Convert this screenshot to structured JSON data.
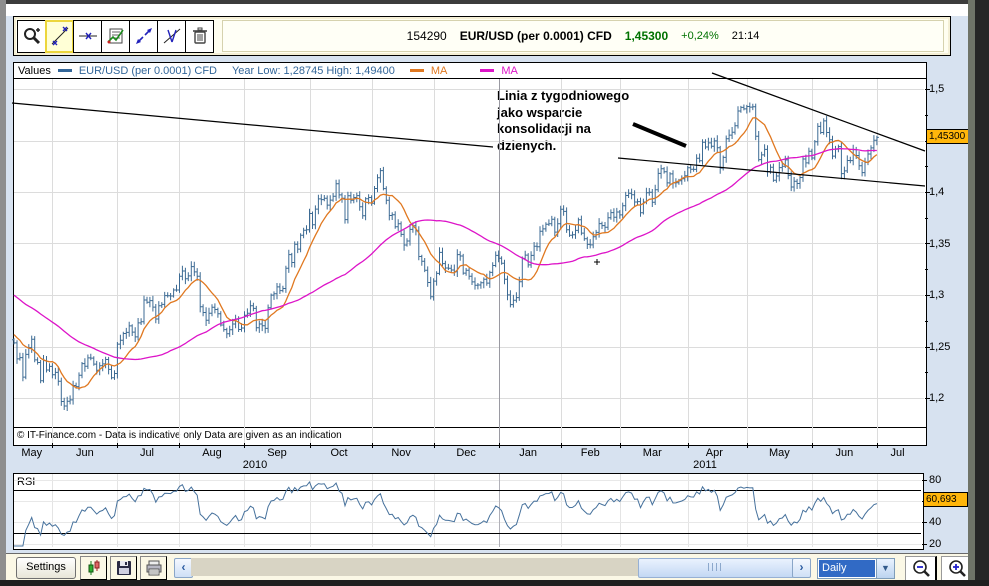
{
  "toolbar": {
    "icons": [
      {
        "name": "zoom-tool-icon"
      },
      {
        "name": "trendline-tool-icon",
        "selected": true
      },
      {
        "name": "horizontal-line-tool-icon"
      },
      {
        "name": "indicator-list-tool-icon"
      },
      {
        "name": "extend-line-tool-icon"
      },
      {
        "name": "delete-line-tool-icon"
      },
      {
        "name": "trash-tool-icon"
      }
    ],
    "quote": {
      "id": "154290",
      "symbol": "EUR/USD (per 0.0001) CFD",
      "price": "1,45300",
      "change": "+0,24%",
      "time": "21:14"
    }
  },
  "legend": {
    "values_label": "Values",
    "symbol": "EUR/USD (per 0.0001) CFD",
    "range": "Year Low: 1,28745 High: 1,49400",
    "ma1_label": "MA",
    "ma2_label": "MA"
  },
  "annotation": {
    "text": "Linia z tygodniowego\njako wsparcie\nkonsolidacji na\ndzienych."
  },
  "copyright": "© IT-Finance.com -  Data is indicative only Data are given as an indication",
  "bottom": {
    "settings_label": "Settings",
    "interval_value": "Daily",
    "scroll_left": "‹",
    "scroll_right": "›",
    "combo_arrow": "▼"
  },
  "colors": {
    "candle": "#3d6b94",
    "ma_fast": "#e07820",
    "ma_slow": "#dd14c8",
    "marker_bg": "#ffb60b",
    "up_green": "#007200",
    "legend_blue": "#336699",
    "rsi_line": "#46719c"
  },
  "chart_data": {
    "type": "candlestick",
    "symbol": "EUR/USD (per 0.0001) CFD",
    "interval": "Daily",
    "x_start_label": "May 2010",
    "x_end_label": "Jul 2011",
    "ylim": [
      1.17,
      1.52
    ],
    "grid": true,
    "price_axis_labels": [
      {
        "text": "1,5",
        "value": 1.5
      },
      {
        "text": "1,4",
        "value": 1.4
      },
      {
        "text": "1,35",
        "value": 1.35
      },
      {
        "text": "1,3",
        "value": 1.3
      },
      {
        "text": "1,25",
        "value": 1.25
      },
      {
        "text": "1,2",
        "value": 1.2
      }
    ],
    "minor_tick_values": [
      1.475,
      1.45,
      1.425,
      1.375,
      1.325,
      1.275,
      1.225
    ],
    "last_price_marker": {
      "text": "1,45300",
      "value": 1.453
    },
    "month_labels": [
      {
        "label": "May",
        "i": 6
      },
      {
        "label": "Jun",
        "i": 24
      },
      {
        "label": "Jul",
        "i": 45
      },
      {
        "label": "Aug",
        "i": 67
      },
      {
        "label": "Sep",
        "i": 89
      },
      {
        "label": "Oct",
        "i": 110
      },
      {
        "label": "Nov",
        "i": 131
      },
      {
        "label": "Dec",
        "i": 153
      },
      {
        "label": "Jan",
        "i": 174
      },
      {
        "label": "Feb",
        "i": 195
      },
      {
        "label": "Mar",
        "i": 216
      },
      {
        "label": "Apr",
        "i": 237
      },
      {
        "label": "May",
        "i": 259
      },
      {
        "label": "Jun",
        "i": 281
      },
      {
        "label": "Jul",
        "i": 299
      }
    ],
    "month_start_indices": [
      13,
      35,
      56,
      78,
      100,
      121,
      142,
      164,
      185,
      205,
      228,
      248,
      270,
      292
    ],
    "year_separator_index": 164,
    "year_labels": [
      {
        "label": "2010",
        "x": 255
      },
      {
        "label": "2011",
        "x": 705
      }
    ],
    "ma_periods": {
      "fast": 10,
      "slow": 50
    },
    "closes": [
      1.2535,
      1.238,
      1.2392,
      1.2203,
      1.2423,
      1.2489,
      1.257,
      1.237,
      1.2345,
      1.2168,
      1.2363,
      1.2272,
      1.2307,
      1.2225,
      1.2249,
      1.2163,
      1.1966,
      1.1922,
      1.1969,
      1.1982,
      1.2121,
      1.2111,
      1.2221,
      1.2334,
      1.2308,
      1.2389,
      1.2387,
      1.2329,
      1.2269,
      1.2313,
      1.2331,
      1.2374,
      1.2278,
      1.2196,
      1.2238,
      1.2523,
      1.256,
      1.2626,
      1.2637,
      1.27,
      1.264,
      1.2593,
      1.2729,
      1.274,
      1.2951,
      1.293,
      1.2946,
      1.2883,
      1.2767,
      1.2895,
      1.2909,
      1.2994,
      1.2993,
      1.299,
      1.3049,
      1.3049,
      1.3182,
      1.3233,
      1.3158,
      1.3185,
      1.3276,
      1.3224,
      1.3183,
      1.2885,
      1.283,
      1.2754,
      1.2822,
      1.2881,
      1.2859,
      1.2817,
      1.2709,
      1.2664,
      1.2624,
      1.2662,
      1.2718,
      1.2764,
      1.2665,
      1.268,
      1.2803,
      1.2822,
      1.2895,
      1.287,
      1.2683,
      1.2718,
      1.2702,
      1.2676,
      1.2876,
      1.2999,
      1.3012,
      1.3079,
      1.3043,
      1.3063,
      1.3259,
      1.3392,
      1.3316,
      1.3493,
      1.3446,
      1.3581,
      1.3629,
      1.3634,
      1.3791,
      1.3683,
      1.3834,
      1.3933,
      1.3926,
      1.3939,
      1.3873,
      1.3921,
      1.3959,
      1.408,
      1.3972,
      1.394,
      1.3732,
      1.3964,
      1.392,
      1.3947,
      1.3965,
      1.3857,
      1.3769,
      1.3934,
      1.3947,
      1.3891,
      1.4034,
      1.4139,
      1.4208,
      1.4033,
      1.392,
      1.3772,
      1.3779,
      1.3663,
      1.3691,
      1.3588,
      1.3485,
      1.3524,
      1.3637,
      1.3672,
      1.3622,
      1.3374,
      1.3327,
      1.3241,
      1.3121,
      1.2983,
      1.3135,
      1.321,
      1.3414,
      1.3305,
      1.3262,
      1.3259,
      1.3243,
      1.3225,
      1.3392,
      1.3379,
      1.3213,
      1.324,
      1.3183,
      1.3127,
      1.3095,
      1.3097,
      1.3118,
      1.3152,
      1.3116,
      1.3219,
      1.3286,
      1.3384,
      1.3357,
      1.3309,
      1.3152,
      1.3001,
      1.2907,
      1.295,
      1.2975,
      1.3128,
      1.3355,
      1.3387,
      1.3292,
      1.3384,
      1.3473,
      1.3469,
      1.3619,
      1.3642,
      1.3686,
      1.3691,
      1.3736,
      1.3611,
      1.3692,
      1.3832,
      1.3812,
      1.3633,
      1.358,
      1.3584,
      1.3627,
      1.373,
      1.3601,
      1.3547,
      1.3491,
      1.3486,
      1.3566,
      1.3608,
      1.3693,
      1.3674,
      1.3657,
      1.375,
      1.38,
      1.3755,
      1.3806,
      1.3778,
      1.3866,
      1.3966,
      1.3987,
      1.3973,
      1.3903,
      1.3907,
      1.3799,
      1.3903,
      1.3992,
      1.3998,
      1.3901,
      1.4021,
      1.4181,
      1.4225,
      1.4197,
      1.4088,
      1.4176,
      1.4088,
      1.409,
      1.411,
      1.4128,
      1.4158,
      1.4235,
      1.4221,
      1.4219,
      1.4327,
      1.4304,
      1.4483,
      1.4437,
      1.4477,
      1.4445,
      1.4496,
      1.443,
      1.4232,
      1.4336,
      1.4517,
      1.4552,
      1.458,
      1.4644,
      1.4786,
      1.4821,
      1.4807,
      1.483,
      1.4824,
      1.4828,
      1.4541,
      1.4315,
      1.436,
      1.4414,
      1.4199,
      1.424,
      1.4115,
      1.4155,
      1.4237,
      1.425,
      1.4312,
      1.4161,
      1.4049,
      1.4104,
      1.4083,
      1.4141,
      1.432,
      1.4283,
      1.4395,
      1.433,
      1.4488,
      1.4637,
      1.4578,
      1.469,
      1.4578,
      1.4508,
      1.4349,
      1.4415,
      1.4441,
      1.4179,
      1.4205,
      1.4306,
      1.4305,
      1.4412,
      1.4354,
      1.4254,
      1.4188,
      1.4286,
      1.4369,
      1.4428,
      1.4502,
      1.453
    ],
    "trendlines": [
      {
        "name": "long-term-resistance",
        "x1": 12,
        "y1": 103,
        "x2": 493,
        "y2": 147
      },
      {
        "name": "upper-resistance",
        "x1": 712,
        "y1": 73,
        "x2": 925,
        "y2": 151
      },
      {
        "name": "weekly-support",
        "x1": 618,
        "y1": 158,
        "x2": 925,
        "y2": 186
      }
    ],
    "arrow": {
      "x1": 633,
      "y1": 124,
      "x2": 686,
      "y2": 146
    },
    "plus_marker": {
      "x": 597,
      "y": 262
    },
    "rsi": {
      "label": "RSI",
      "period": 14,
      "level_lines": [
        70,
        30
      ],
      "grid_levels": [
        80,
        60,
        40,
        20
      ],
      "axis_labels": [
        {
          "text": "80",
          "value": 80
        },
        {
          "text": "40",
          "value": 40
        },
        {
          "text": "20",
          "value": 20
        }
      ],
      "marker": {
        "text": "60,693",
        "value": 60.693
      }
    }
  }
}
